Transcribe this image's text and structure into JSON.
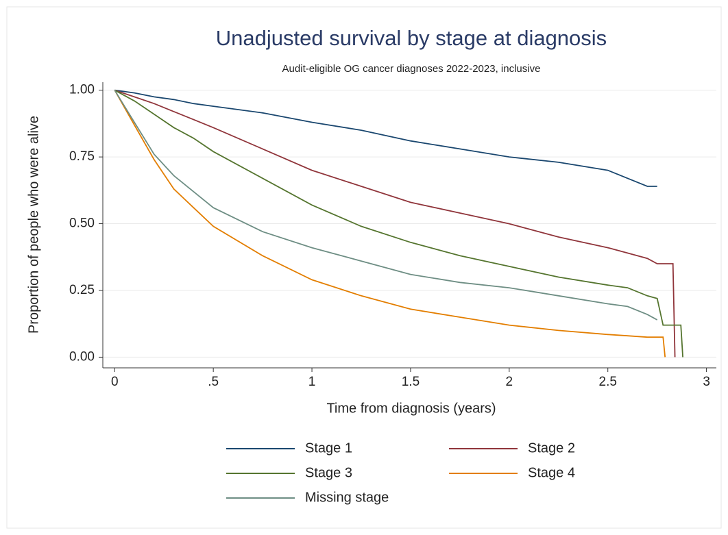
{
  "chart_data": {
    "type": "line",
    "title": "Unadjusted survival by stage at diagnosis",
    "subtitle": "Audit-eligible OG cancer diagnoses 2022-2023, inclusive",
    "x_label": "Time from diagnosis (years)",
    "y_label": "Proportion of people who were alive",
    "x": [
      0,
      0.1,
      0.2,
      0.3,
      0.4,
      0.5,
      0.75,
      1,
      1.25,
      1.5,
      1.75,
      2,
      2.25,
      2.5,
      2.6,
      2.7,
      2.75,
      2.78,
      2.79,
      2.83,
      2.84,
      2.87,
      2.88
    ],
    "series": [
      {
        "name": "Stage 1",
        "color": "#1a476f",
        "values": [
          1,
          0.99,
          0.975,
          0.965,
          0.95,
          0.94,
          0.915,
          0.88,
          0.85,
          0.81,
          0.78,
          0.75,
          0.73,
          0.7,
          0.67,
          0.64,
          0.64,
          null,
          null,
          null,
          null,
          null,
          null
        ]
      },
      {
        "name": "Stage 2",
        "color": "#90353b",
        "values": [
          1,
          0.975,
          0.95,
          0.92,
          0.89,
          0.86,
          0.78,
          0.7,
          0.64,
          0.58,
          0.54,
          0.5,
          0.45,
          0.41,
          0.39,
          0.37,
          0.35,
          0.35,
          0.35,
          0.35,
          0,
          null,
          null
        ]
      },
      {
        "name": "Stage 3",
        "color": "#55752f",
        "values": [
          1,
          0.96,
          0.91,
          0.86,
          0.82,
          0.77,
          0.67,
          0.57,
          0.49,
          0.43,
          0.38,
          0.34,
          0.3,
          0.27,
          0.26,
          0.23,
          0.22,
          0.12,
          0.12,
          0.12,
          0.12,
          0.12,
          0
        ]
      },
      {
        "name": "Stage 4",
        "color": "#e37e00",
        "values": [
          1,
          0.87,
          0.74,
          0.63,
          0.56,
          0.49,
          0.38,
          0.29,
          0.23,
          0.18,
          0.15,
          0.12,
          0.1,
          0.085,
          0.08,
          0.075,
          0.075,
          0.075,
          0,
          null,
          null,
          null,
          null
        ]
      },
      {
        "name": "Missing stage",
        "color": "#6e8e84",
        "values": [
          1,
          0.88,
          0.76,
          0.68,
          0.62,
          0.56,
          0.47,
          0.41,
          0.36,
          0.31,
          0.28,
          0.26,
          0.23,
          0.2,
          0.19,
          0.16,
          0.14,
          null,
          null,
          null,
          null,
          null,
          null
        ]
      }
    ],
    "xlim": [
      -0.06,
      3.05
    ],
    "xticks": [
      0,
      {
        "value": 0.5,
        "label": ".5"
      },
      1,
      1.5,
      2,
      2.5,
      3
    ],
    "ylim": [
      -0.04,
      1.03
    ],
    "yticks": [
      {
        "value": 0,
        "label": "0.00"
      },
      {
        "value": 0.25,
        "label": "0.25"
      },
      {
        "value": 0.5,
        "label": "0.50"
      },
      {
        "value": 0.75,
        "label": "0.75"
      },
      {
        "value": 1,
        "label": "1.00"
      }
    ],
    "grid": true,
    "legend": "bottom"
  }
}
